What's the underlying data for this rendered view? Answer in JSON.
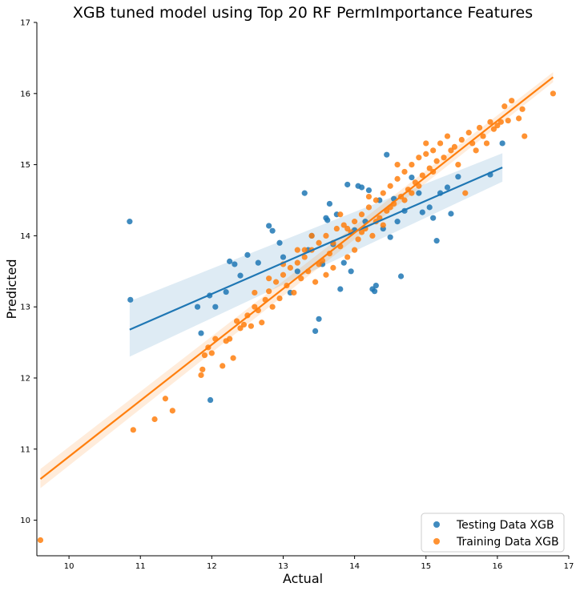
{
  "chart_data": {
    "type": "scatter",
    "title": "XGB tuned model using Top 20 RF PermImportance Features",
    "xlabel": "Actual",
    "ylabel": "Predicted",
    "xlim": [
      9.55,
      17
    ],
    "ylim": [
      9.5,
      17
    ],
    "xticks": [
      "10",
      "11",
      "12",
      "13",
      "14",
      "15",
      "16",
      "17"
    ],
    "yticks": [
      "10",
      "11",
      "12",
      "13",
      "14",
      "15",
      "16",
      "17"
    ],
    "legend_position": "bottom-right",
    "series": [
      {
        "name": "Testing Data XGB",
        "color": "#1f77b4",
        "regression": {
          "x": [
            10.85,
            16.07
          ],
          "y": [
            12.68,
            14.96
          ],
          "ci_lower": [
            12.3,
            14.76
          ],
          "ci_upper": [
            13.08,
            15.16
          ]
        },
        "points": [
          [
            10.85,
            14.2
          ],
          [
            10.86,
            13.1
          ],
          [
            11.8,
            13.0
          ],
          [
            11.85,
            12.63
          ],
          [
            11.97,
            13.16
          ],
          [
            11.98,
            11.69
          ],
          [
            12.05,
            13.0
          ],
          [
            12.2,
            13.21
          ],
          [
            12.25,
            13.64
          ],
          [
            12.32,
            13.6
          ],
          [
            12.4,
            13.44
          ],
          [
            12.5,
            13.73
          ],
          [
            12.65,
            13.62
          ],
          [
            12.8,
            14.14
          ],
          [
            12.85,
            14.07
          ],
          [
            12.95,
            13.9
          ],
          [
            13.0,
            13.7
          ],
          [
            13.1,
            13.2
          ],
          [
            13.2,
            13.5
          ],
          [
            13.3,
            14.6
          ],
          [
            13.35,
            13.8
          ],
          [
            13.4,
            14.0
          ],
          [
            13.45,
            12.66
          ],
          [
            13.5,
            12.83
          ],
          [
            13.55,
            13.6
          ],
          [
            13.6,
            14.25
          ],
          [
            13.62,
            14.22
          ],
          [
            13.65,
            14.45
          ],
          [
            13.7,
            13.88
          ],
          [
            13.75,
            14.3
          ],
          [
            13.8,
            13.25
          ],
          [
            13.85,
            13.62
          ],
          [
            13.9,
            14.72
          ],
          [
            13.95,
            13.5
          ],
          [
            14.0,
            14.08
          ],
          [
            14.05,
            14.7
          ],
          [
            14.1,
            14.68
          ],
          [
            14.15,
            14.2
          ],
          [
            14.2,
            14.64
          ],
          [
            14.25,
            13.25
          ],
          [
            14.28,
            13.22
          ],
          [
            14.3,
            13.3
          ],
          [
            14.35,
            14.5
          ],
          [
            14.4,
            14.1
          ],
          [
            14.45,
            15.14
          ],
          [
            14.5,
            13.98
          ],
          [
            14.55,
            14.52
          ],
          [
            14.6,
            14.2
          ],
          [
            14.65,
            13.43
          ],
          [
            14.7,
            14.35
          ],
          [
            14.8,
            14.82
          ],
          [
            14.9,
            14.6
          ],
          [
            14.95,
            14.33
          ],
          [
            15.05,
            14.4
          ],
          [
            15.1,
            14.25
          ],
          [
            15.15,
            13.93
          ],
          [
            15.2,
            14.6
          ],
          [
            15.3,
            14.68
          ],
          [
            15.35,
            14.31
          ],
          [
            15.45,
            14.83
          ],
          [
            15.9,
            14.86
          ],
          [
            16.07,
            15.3
          ]
        ]
      },
      {
        "name": "Training Data XGB",
        "color": "#ff7f0e",
        "regression": {
          "x": [
            9.6,
            16.78
          ],
          "y": [
            10.58,
            16.23
          ],
          "ci_lower": [
            10.45,
            16.16
          ],
          "ci_upper": [
            10.72,
            16.3
          ]
        },
        "points": [
          [
            9.6,
            9.72
          ],
          [
            10.9,
            11.27
          ],
          [
            11.2,
            11.42
          ],
          [
            11.35,
            11.71
          ],
          [
            11.45,
            11.54
          ],
          [
            11.85,
            12.04
          ],
          [
            11.87,
            12.12
          ],
          [
            11.9,
            12.32
          ],
          [
            11.95,
            12.43
          ],
          [
            12.0,
            12.35
          ],
          [
            12.05,
            12.55
          ],
          [
            12.15,
            12.17
          ],
          [
            12.2,
            12.52
          ],
          [
            12.25,
            12.55
          ],
          [
            12.3,
            12.28
          ],
          [
            12.35,
            12.8
          ],
          [
            12.4,
            12.7
          ],
          [
            12.45,
            12.75
          ],
          [
            12.5,
            12.88
          ],
          [
            12.55,
            12.73
          ],
          [
            12.6,
            13.0
          ],
          [
            12.65,
            12.95
          ],
          [
            12.7,
            12.78
          ],
          [
            12.75,
            13.1
          ],
          [
            12.8,
            13.22
          ],
          [
            12.85,
            13.0
          ],
          [
            12.9,
            13.35
          ],
          [
            12.95,
            13.12
          ],
          [
            13.0,
            13.45
          ],
          [
            13.05,
            13.3
          ],
          [
            13.1,
            13.55
          ],
          [
            13.15,
            13.2
          ],
          [
            13.2,
            13.62
          ],
          [
            13.25,
            13.4
          ],
          [
            13.3,
            13.7
          ],
          [
            13.35,
            13.5
          ],
          [
            13.4,
            13.8
          ],
          [
            13.45,
            13.35
          ],
          [
            13.5,
            13.9
          ],
          [
            13.55,
            13.65
          ],
          [
            13.6,
            14.0
          ],
          [
            13.65,
            13.75
          ],
          [
            13.7,
            13.55
          ],
          [
            13.75,
            14.1
          ],
          [
            13.8,
            13.85
          ],
          [
            13.85,
            14.15
          ],
          [
            13.9,
            13.7
          ],
          [
            13.95,
            14.05
          ],
          [
            14.0,
            14.2
          ],
          [
            14.05,
            13.95
          ],
          [
            14.1,
            14.3
          ],
          [
            14.15,
            14.1
          ],
          [
            14.2,
            14.4
          ],
          [
            14.25,
            14.0
          ],
          [
            14.3,
            14.5
          ],
          [
            14.35,
            14.25
          ],
          [
            14.4,
            14.6
          ],
          [
            14.45,
            14.35
          ],
          [
            14.5,
            14.7
          ],
          [
            14.55,
            14.45
          ],
          [
            14.6,
            14.8
          ],
          [
            14.65,
            14.55
          ],
          [
            14.7,
            14.9
          ],
          [
            14.75,
            14.65
          ],
          [
            14.8,
            15.0
          ],
          [
            14.85,
            14.75
          ],
          [
            14.9,
            15.1
          ],
          [
            14.95,
            14.85
          ],
          [
            15.0,
            15.15
          ],
          [
            15.05,
            14.95
          ],
          [
            15.1,
            15.2
          ],
          [
            15.15,
            15.05
          ],
          [
            15.2,
            15.3
          ],
          [
            15.25,
            15.1
          ],
          [
            15.3,
            15.4
          ],
          [
            15.35,
            15.2
          ],
          [
            15.4,
            15.25
          ],
          [
            15.45,
            15.0
          ],
          [
            15.5,
            15.35
          ],
          [
            15.55,
            14.6
          ],
          [
            15.6,
            15.45
          ],
          [
            15.65,
            15.3
          ],
          [
            15.7,
            15.2
          ],
          [
            15.75,
            15.52
          ],
          [
            15.8,
            15.4
          ],
          [
            15.85,
            15.3
          ],
          [
            15.9,
            15.6
          ],
          [
            15.95,
            15.5
          ],
          [
            16.0,
            15.55
          ],
          [
            16.05,
            15.6
          ],
          [
            16.1,
            15.82
          ],
          [
            16.15,
            15.62
          ],
          [
            16.2,
            15.9
          ],
          [
            16.3,
            15.65
          ],
          [
            16.35,
            15.78
          ],
          [
            16.38,
            15.4
          ],
          [
            16.78,
            16.0
          ],
          [
            13.3,
            13.8
          ],
          [
            13.5,
            13.6
          ],
          [
            13.7,
            13.9
          ],
          [
            13.9,
            14.1
          ],
          [
            14.1,
            14.05
          ],
          [
            14.3,
            14.2
          ],
          [
            14.5,
            14.4
          ],
          [
            14.7,
            14.5
          ],
          [
            14.9,
            14.7
          ],
          [
            15.1,
            14.9
          ],
          [
            13.6,
            13.45
          ],
          [
            13.8,
            14.3
          ],
          [
            14.0,
            13.8
          ],
          [
            14.2,
            14.55
          ],
          [
            14.4,
            14.15
          ],
          [
            14.6,
            15.0
          ],
          [
            14.8,
            14.6
          ],
          [
            15.0,
            15.3
          ],
          [
            13.4,
            14.0
          ],
          [
            13.2,
            13.8
          ],
          [
            13.0,
            13.6
          ],
          [
            12.8,
            13.4
          ],
          [
            12.6,
            13.2
          ]
        ]
      }
    ]
  }
}
